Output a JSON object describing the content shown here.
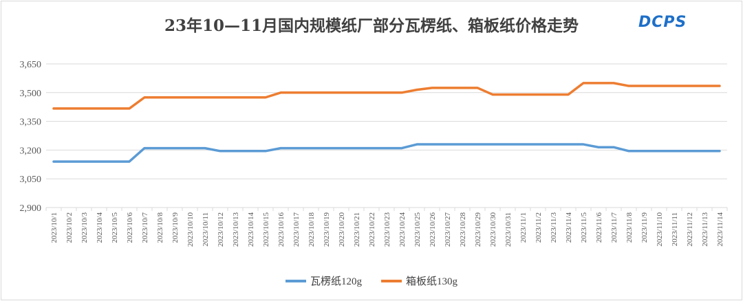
{
  "chart_data": {
    "type": "line",
    "title": "23年10—11月国内规模纸厂部分瓦楞纸、箱板纸价格走势",
    "logo_text": "DCPS",
    "xlabel": "",
    "ylabel": "",
    "ylim": [
      2900,
      3650
    ],
    "yticks": [
      "2,900",
      "3,050",
      "3,200",
      "3,350",
      "3,500",
      "3,650"
    ],
    "ytick_values": [
      2900,
      3050,
      3200,
      3350,
      3500,
      3650
    ],
    "grid": true,
    "legend_position": "bottom",
    "categories": [
      "2023/10/1",
      "2023/10/2",
      "2023/10/3",
      "2023/10/4",
      "2023/10/5",
      "2023/10/6",
      "2023/10/7",
      "2023/10/8",
      "2023/10/9",
      "2023/10/10",
      "2023/10/11",
      "2023/10/12",
      "2023/10/13",
      "2023/10/14",
      "2023/10/15",
      "2023/10/16",
      "2023/10/17",
      "2023/10/18",
      "2023/10/19",
      "2023/10/20",
      "2023/10/21",
      "2023/10/22",
      "2023/10/23",
      "2023/10/24",
      "2023/10/25",
      "2023/10/26",
      "2023/10/27",
      "2023/10/28",
      "2023/10/29",
      "2023/10/30",
      "2023/10/31",
      "2023/11/1",
      "2023/11/2",
      "2023/11/3",
      "2023/11/4",
      "2023/11/5",
      "2023/11/6",
      "2023/11/7",
      "2023/11/8",
      "2023/11/9",
      "2023/11/10",
      "2023/11/11",
      "2023/11/12",
      "2023/11/13",
      "2023/11/14"
    ],
    "series": [
      {
        "name": "瓦楞纸120g",
        "color": "#5b9bd5",
        "values": [
          3140,
          3140,
          3140,
          3140,
          3140,
          3140,
          3210,
          3210,
          3210,
          3210,
          3210,
          3195,
          3195,
          3195,
          3195,
          3210,
          3210,
          3210,
          3210,
          3210,
          3210,
          3210,
          3210,
          3210,
          3230,
          3230,
          3230,
          3230,
          3230,
          3230,
          3230,
          3230,
          3230,
          3230,
          3230,
          3230,
          3215,
          3215,
          3195,
          3195,
          3195,
          3195,
          3195,
          3195,
          3195
        ]
      },
      {
        "name": "箱板纸130g",
        "color": "#ed7d31",
        "values": [
          3417,
          3417,
          3417,
          3417,
          3417,
          3417,
          3475,
          3475,
          3475,
          3475,
          3475,
          3475,
          3475,
          3475,
          3475,
          3500,
          3500,
          3500,
          3500,
          3500,
          3500,
          3500,
          3500,
          3500,
          3515,
          3525,
          3525,
          3525,
          3525,
          3490,
          3490,
          3490,
          3490,
          3490,
          3490,
          3550,
          3550,
          3550,
          3535,
          3535,
          3535,
          3535,
          3535,
          3535,
          3535
        ]
      }
    ]
  }
}
